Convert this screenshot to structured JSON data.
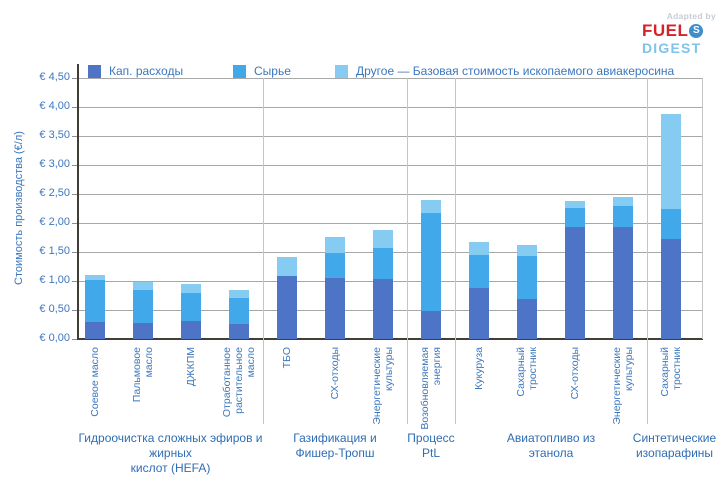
{
  "logo": {
    "adapted_by": "Adapted by",
    "fuel": "FUEL",
    "s_icon": "S",
    "digest": "DIGEST"
  },
  "y_axis": {
    "title": "Стоимость производства (€/л)"
  },
  "chart_data": {
    "type": "bar",
    "stacked": true,
    "ylabel": "Стоимость производства (€/л)",
    "ylim": [
      0,
      4.5
    ],
    "ytick_step": 0.5,
    "grid": true,
    "legend_position": "top",
    "currency_unit": "€/л",
    "ytick_labels": [
      "€ 0,00",
      "€ 0,50",
      "€ 1,00",
      "€ 1,50",
      "€ 2,00",
      "€ 2,50",
      "€ 3,00",
      "€ 3,50",
      "€ 4,00",
      "€ 4,50"
    ],
    "series": [
      {
        "key": "capex",
        "name": "Кап. расходы",
        "color": "#4D74C5"
      },
      {
        "key": "feedstock",
        "name": "Сырье",
        "color": "#41A9EA"
      },
      {
        "key": "other",
        "name": "Другое — Базовая стоимость ископаемого авиакеросина",
        "color": "#85CBF2"
      }
    ],
    "groups": [
      {
        "label": "Гидроочистка сложных эфиров и жирных\nкислот (HEFA)",
        "bars": [
          {
            "label": "Соевое масло",
            "capex": 0.29,
            "feedstock": 0.73,
            "other": 0.08
          },
          {
            "label": "Пальмовое\nмасло",
            "capex": 0.28,
            "feedstock": 0.56,
            "other": 0.14
          },
          {
            "label": "ДЖКПМ",
            "capex": 0.31,
            "feedstock": 0.48,
            "other": 0.16
          },
          {
            "label": "Отработанное\nрастительное\nмасло",
            "capex": 0.26,
            "feedstock": 0.45,
            "other": 0.14
          }
        ]
      },
      {
        "label": "Газификация и\nФишер-Тропш",
        "bars": [
          {
            "label": "ТБО",
            "capex": 1.08,
            "feedstock": 0.0,
            "other": 0.33
          },
          {
            "label": "СХ-отходы",
            "capex": 1.05,
            "feedstock": 0.43,
            "other": 0.28
          },
          {
            "label": "Энергетические\nкультуры",
            "capex": 1.03,
            "feedstock": 0.54,
            "other": 0.31
          }
        ]
      },
      {
        "label": "Процесс\nPtL",
        "bars": [
          {
            "label": "Возобновляемая\nэнергия",
            "capex": 0.48,
            "feedstock": 1.7,
            "other": 0.22
          }
        ]
      },
      {
        "label": "Авиатопливо из\nэтанола",
        "bars": [
          {
            "label": "Кукуруза",
            "capex": 0.88,
            "feedstock": 0.57,
            "other": 0.22
          },
          {
            "label": "Сахарный\nтростник",
            "capex": 0.69,
            "feedstock": 0.74,
            "other": 0.19
          },
          {
            "label": "СХ-отходы",
            "capex": 1.93,
            "feedstock": 0.33,
            "other": 0.12
          },
          {
            "label": "Энергетические\nкультуры",
            "capex": 1.93,
            "feedstock": 0.36,
            "other": 0.16
          }
        ]
      },
      {
        "label": "Синтетические\nизопарафины",
        "bars": [
          {
            "label": "Сахарный\nтростник",
            "capex": 1.72,
            "feedstock": 0.52,
            "other": 1.64
          }
        ]
      }
    ]
  }
}
